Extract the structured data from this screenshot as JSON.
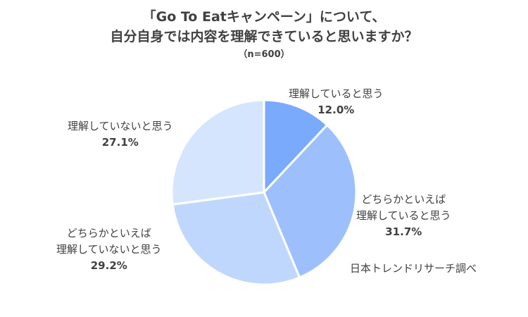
{
  "chart_data": {
    "type": "pie",
    "title_lines": [
      "「Go To Eatキャンペーン」について、",
      "自分自身では内容を理解できていると思いますか？"
    ],
    "subtitle": "（n=600）",
    "start_angle": 0,
    "direction": "clockwise",
    "slices": [
      {
        "label_lines": [
          "理解していると思う"
        ],
        "value": 12.0,
        "pct_label": "12.0%",
        "color": "#7aaafc"
      },
      {
        "label_lines": [
          "どちらかといえば",
          "理解していると思う"
        ],
        "value": 31.7,
        "pct_label": "31.7%",
        "color": "#9dc0fd"
      },
      {
        "label_lines": [
          "どちらかといえば",
          "理解していないと思う"
        ],
        "value": 29.2,
        "pct_label": "29.2%",
        "color": "#c0d7fd"
      },
      {
        "label_lines": [
          "理解していないと思う"
        ],
        "value": 27.1,
        "pct_label": "27.1%",
        "color": "#d6e5fe"
      }
    ],
    "source": "日本トレンドリサーチ調べ"
  }
}
